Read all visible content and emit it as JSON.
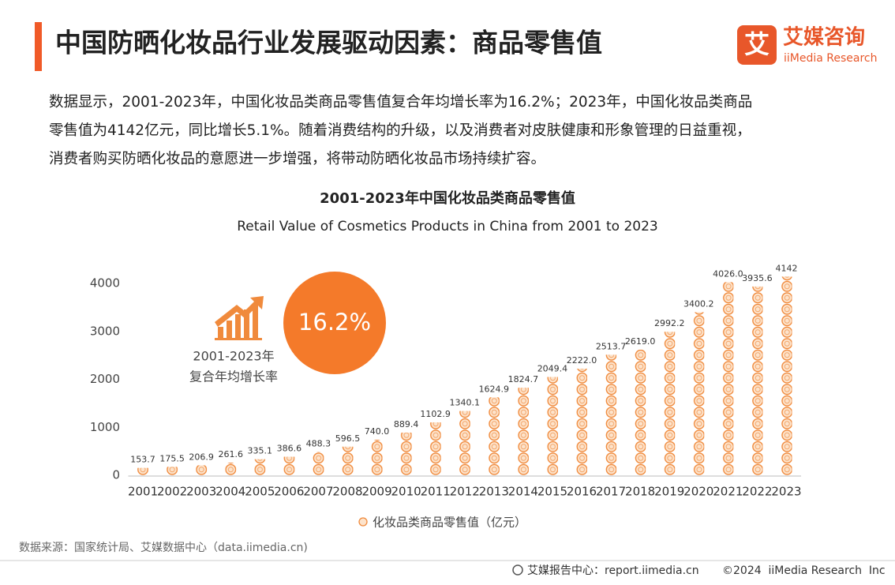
{
  "header": {
    "title": "中国防晒化妆品行业发展驱动因素：商品零售值",
    "logo_cn": "艾媒咨询",
    "logo_en": "iiMedia Research",
    "logo_icon": "艾"
  },
  "description": [
    "数据显示，2001-2023年，中国化妆品类商品零售值复合年均增长率为16.2%；2023年，中国化妆品类商品",
    "零售值为4142亿元，同比增长5.1%。随着消费结构的升级，以及消费者对皮肤健康和形象管理的日益重视，",
    "消费者购买防晒化妆品的意愿进一步增强，将带动防晒化妆品市场持续扩容。"
  ],
  "chart_data": {
    "type": "bar",
    "title": "2001-2023年中国化妆品类商品零售值",
    "subtitle": "Retail Value of Cosmetics Products in China from 2001 to 2023",
    "categories": [
      "2001",
      "2002",
      "2003",
      "2004",
      "2005",
      "2006",
      "2007",
      "2008",
      "2009",
      "2010",
      "2011",
      "2012",
      "2013",
      "2014",
      "2015",
      "2016",
      "2017",
      "2018",
      "2019",
      "2020",
      "2021",
      "2022",
      "2023"
    ],
    "series": [
      {
        "name": "化妆品类商品零售值（亿元）",
        "color": "#f08a3c",
        "values": [
          153.7,
          175.5,
          206.9,
          261.6,
          335.1,
          386.6,
          488.3,
          596.5,
          740.0,
          889.4,
          1102.9,
          1340.1,
          1624.9,
          1824.7,
          2049.4,
          2222.0,
          2513.7,
          2619.0,
          2992.2,
          3400.2,
          4026.0,
          3935.6,
          4142
        ],
        "value_labels": [
          "153.7",
          "175.5",
          "206.9",
          "261.6",
          "335.1",
          "386.6",
          "488.3",
          "596.5",
          "740.0",
          "889.4",
          "1102.9",
          "1340.1",
          "1624.9",
          "1824.7",
          "2049.4",
          "2222.0",
          "2513.7",
          "2619.0",
          "2992.2",
          "3400.2",
          "4026.0",
          "3935.6",
          "4142"
        ]
      }
    ],
    "ylim": [
      0,
      4300
    ],
    "yticks": [
      0,
      1000,
      2000,
      3000,
      4000
    ],
    "annotation": {
      "value": "16.2%",
      "label": [
        "2001-2023年",
        "复合年均增长率"
      ]
    }
  },
  "source": "数据来源：国家统计局、艾媒数据中心（data.iimedia.cn)",
  "footer": {
    "left": "艾媒报告中心：report.iimedia.cn",
    "right": "©2024  iiMedia Research  Inc"
  }
}
